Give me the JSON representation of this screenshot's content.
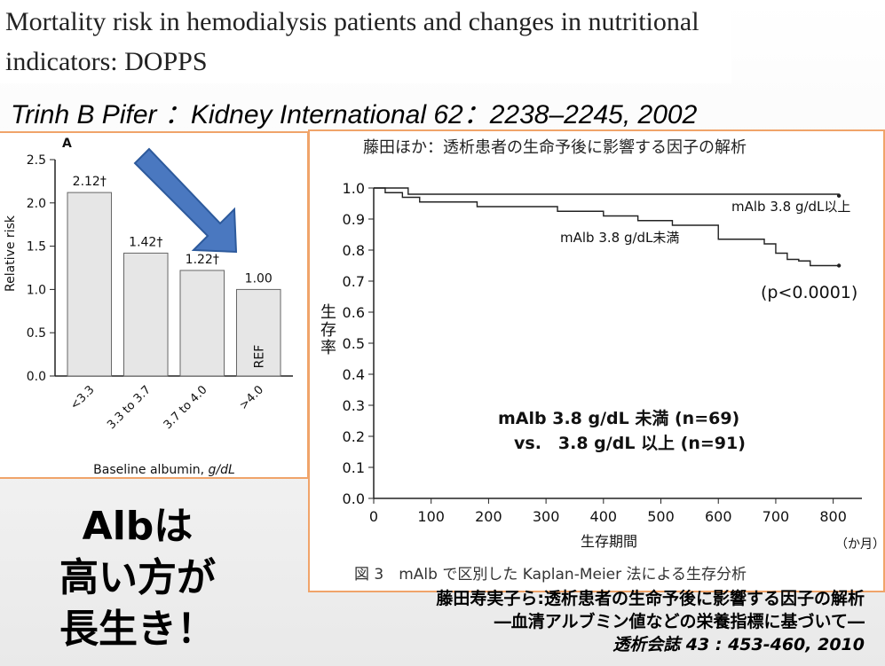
{
  "slide": {
    "title": "Mortality risk in hemodialysis patients and changes in nutritional indicators: DOPPS",
    "citation": "Trinh B Pifer ：Kidney International 62：2238‒2245, 2002",
    "slogan_lines": [
      "Albは",
      "高い方が",
      "長生き！"
    ],
    "reference_lines": [
      "藤田寿実子ら:透析患者の生命予後に影響する因子の解析",
      "―血清アルブミン値などの栄養指標に基づいて―",
      "透析会誌 43 : 453-460, 2010"
    ],
    "arrow_color": "#4a78c0"
  },
  "chart_data": [
    {
      "type": "bar",
      "panel_letter": "A",
      "categories": [
        "<3.3",
        "3.3 to 3.7",
        "3.7 to 4.0",
        ">4.0"
      ],
      "values": [
        2.12,
        1.42,
        1.22,
        1.0
      ],
      "data_labels": [
        "2.12†",
        "1.42†",
        "1.22†",
        "1.00"
      ],
      "bar_inner_labels": [
        "",
        "",
        "",
        "REF"
      ],
      "ylabel": "Relative risk",
      "xlabel": "Baseline albumin, g/dL",
      "ylim": [
        0,
        2.5
      ],
      "yticks": [
        0.0,
        0.5,
        1.0,
        1.5,
        2.0,
        2.5
      ],
      "bar_color": "#e6e6e6"
    },
    {
      "type": "line",
      "title": "藤田ほか：透析患者の生命予後に影響する因子の解析",
      "caption": "図 3　mAlb で区別した Kaplan-Meier 法による生存分析",
      "xlabel": "生存期間",
      "xunit": "（か月）",
      "ylabel": "生存率",
      "xlim": [
        0,
        850
      ],
      "ylim": [
        0,
        1.0
      ],
      "xticks": [
        0,
        100,
        200,
        300,
        400,
        500,
        600,
        700,
        800
      ],
      "yticks": [
        0.0,
        0.1,
        0.2,
        0.3,
        0.4,
        0.5,
        0.6,
        0.7,
        0.8,
        0.9,
        1.0
      ],
      "series": [
        {
          "name": "mAlb 3.8 g/dL以上",
          "x": [
            0,
            60,
            810
          ],
          "y": [
            1.0,
            0.98,
            0.975
          ]
        },
        {
          "name": "mAlb 3.8 g/dL未満",
          "x": [
            0,
            20,
            50,
            80,
            120,
            180,
            250,
            320,
            350,
            400,
            430,
            460,
            520,
            560,
            600,
            640,
            680,
            700,
            720,
            740,
            760,
            810
          ],
          "y": [
            1.0,
            0.985,
            0.97,
            0.955,
            0.955,
            0.94,
            0.94,
            0.925,
            0.925,
            0.91,
            0.91,
            0.895,
            0.88,
            0.88,
            0.835,
            0.835,
            0.82,
            0.79,
            0.77,
            0.765,
            0.75,
            0.75
          ]
        }
      ],
      "annotations": [
        "(p<0.0001)",
        "mAlb 3.8 g/dL 未満 (n=69)",
        "vs.　3.8 g/dL 以上 (n=91)"
      ]
    }
  ]
}
